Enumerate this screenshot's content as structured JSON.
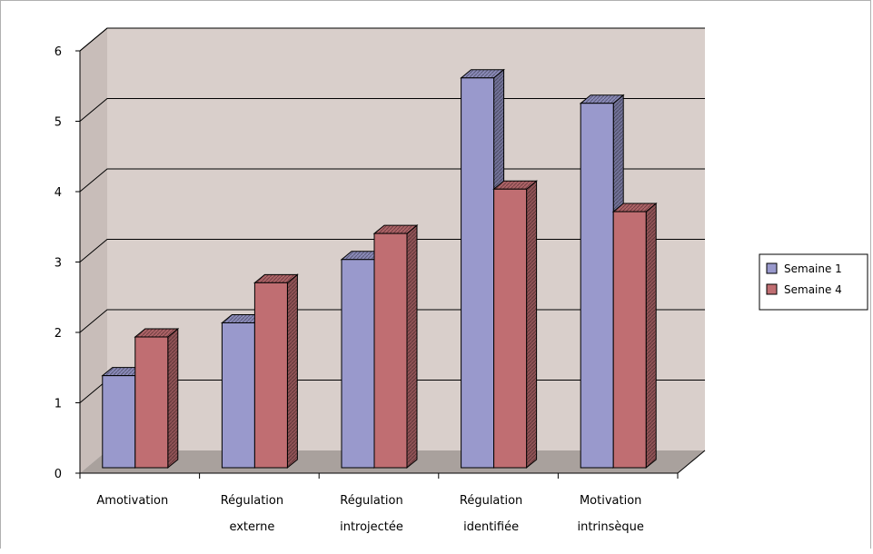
{
  "chart_data": {
    "type": "bar",
    "style": "3d-clustered-column",
    "title": "",
    "xlabel": "",
    "ylabel": "",
    "ylim": [
      0,
      6
    ],
    "yticks": [
      0,
      1,
      2,
      3,
      4,
      5,
      6
    ],
    "grid": true,
    "legend_position": "right",
    "categories": [
      [
        "Amotivation"
      ],
      [
        "Régulation",
        "externe"
      ],
      [
        "Régulation",
        "introjectée"
      ],
      [
        "Régulation",
        "identifiée"
      ],
      [
        "Motivation",
        "intrinsèque"
      ]
    ],
    "series": [
      {
        "name": "Semaine 1",
        "color": "#9999cc",
        "values": [
          1.45,
          2.2,
          3.1,
          5.68,
          5.32
        ]
      },
      {
        "name": "Semaine 4",
        "color": "#c06e72",
        "values": [
          2.0,
          2.77,
          3.47,
          4.1,
          3.78
        ]
      }
    ]
  }
}
